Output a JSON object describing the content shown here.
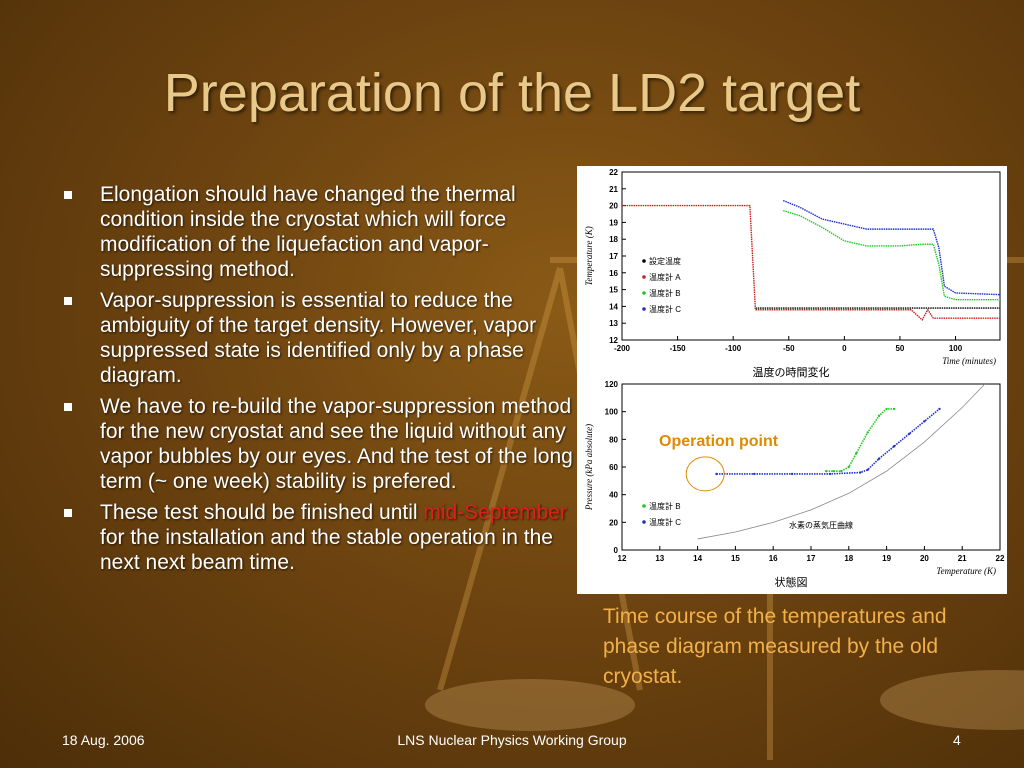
{
  "slide": {
    "title": "Preparation of the LD2 target",
    "bullets": [
      {
        "text": "Elongation should have changed the thermal condition inside the cryostat which will force modification of the liquefaction and vapor-suppressing method."
      },
      {
        "text": "Vapor-suppression is essential to reduce the ambiguity of the target density. However, vapor suppressed state is identified only by a phase diagram."
      },
      {
        "text": "We have to re-build the vapor-suppression method for the new cryostat and see the liquid without any vapor bubbles by our eyes. And the test of the long term (~ one week) stability is prefered."
      },
      {
        "text_before": "These test should be finished until ",
        "highlight": "mid-September",
        "text_after": " for the installation and the stable operation in the next next beam time."
      }
    ],
    "caption": "Time course of the temperatures and phase diagram measured by the old cryostat.",
    "footer": {
      "date": "18 Aug. 2006",
      "center": "LNS Nuclear Physics Working Group",
      "page": "4"
    },
    "colors": {
      "title": "#e8c98a",
      "caption": "#f2b04a",
      "highlight": "#e0201a"
    }
  },
  "chart_data": [
    {
      "type": "line",
      "title": "温度の時間変化",
      "xlabel": "Time (minutes)",
      "ylabel": "Temperature (K)",
      "xlim": [
        -200,
        140
      ],
      "ylim": [
        12,
        22
      ],
      "x_ticks": [
        "-200",
        "-150",
        "-100",
        "-50",
        "0",
        "50",
        "100"
      ],
      "y_ticks": [
        "12",
        "13",
        "14",
        "15",
        "16",
        "17",
        "18",
        "19",
        "20",
        "21",
        "22"
      ],
      "legend": {
        "position": "left-bottom",
        "entries": [
          "設定温度",
          "温度計 A",
          "温度計 B",
          "温度計 C"
        ]
      },
      "series": [
        {
          "name": "設定温度",
          "color": "#000000",
          "x": [
            -80,
            0,
            65,
            100,
            140
          ],
          "y": [
            13.9,
            13.9,
            13.9,
            13.9,
            13.9
          ]
        },
        {
          "name": "温度計 A",
          "color": "#cc2020",
          "x": [
            -200,
            -150,
            -100,
            -85,
            -80,
            -10,
            0,
            60,
            70,
            75,
            80,
            100,
            140
          ],
          "y": [
            20.0,
            20.0,
            20.0,
            20.0,
            13.8,
            13.8,
            13.8,
            13.8,
            13.2,
            13.8,
            13.3,
            13.3,
            13.3
          ]
        },
        {
          "name": "温度計 B",
          "color": "#20cc20",
          "x": [
            -55,
            -40,
            -20,
            0,
            20,
            50,
            70,
            80,
            85,
            90,
            100,
            140
          ],
          "y": [
            19.7,
            19.4,
            18.7,
            17.9,
            17.6,
            17.6,
            17.7,
            17.7,
            16.5,
            14.6,
            14.4,
            14.4
          ]
        },
        {
          "name": "温度計 C",
          "color": "#2030cc",
          "x": [
            -55,
            -40,
            -20,
            0,
            20,
            50,
            70,
            80,
            85,
            90,
            100,
            140
          ],
          "y": [
            20.3,
            19.9,
            19.2,
            18.9,
            18.6,
            18.6,
            18.6,
            18.6,
            17.5,
            15.2,
            14.8,
            14.7
          ]
        }
      ]
    },
    {
      "type": "scatter",
      "title": "状態図",
      "xlabel": "Temperature (K)",
      "ylabel": "Pressure (kPa absolute)",
      "xlim": [
        12,
        22
      ],
      "ylim": [
        0,
        120
      ],
      "x_ticks": [
        "12",
        "13",
        "14",
        "15",
        "16",
        "17",
        "18",
        "19",
        "20",
        "21",
        "22"
      ],
      "y_ticks": [
        "0",
        "20",
        "40",
        "60",
        "80",
        "100",
        "120"
      ],
      "legend": {
        "position": "left-bottom",
        "entries": [
          "温度計 B",
          "温度計 C"
        ]
      },
      "annotations": [
        {
          "text": "Operation point",
          "color": "#e08a00"
        },
        {
          "text": "水素の蒸気圧曲線",
          "color": "#000000"
        }
      ],
      "series": [
        {
          "name": "温度計 B",
          "color": "#20cc20",
          "x": [
            17.4,
            17.6,
            17.8,
            18.0,
            18.2,
            18.5,
            18.8,
            19.0,
            19.2
          ],
          "y": [
            57,
            57,
            57,
            60,
            70,
            85,
            97,
            102,
            102
          ]
        },
        {
          "name": "温度計 C",
          "color": "#2030cc",
          "x": [
            14.5,
            15.5,
            16.5,
            17.5,
            18.3,
            18.5,
            18.8,
            19.2,
            19.6,
            20.0,
            20.4
          ],
          "y": [
            55,
            55,
            55,
            55,
            56,
            58,
            66,
            75,
            84,
            93,
            102
          ]
        },
        {
          "name": "水素の蒸気圧曲線",
          "color": "#888888",
          "x": [
            14.0,
            15.0,
            16.0,
            17.0,
            18.0,
            19.0,
            20.0,
            21.0,
            21.6
          ],
          "y": [
            8,
            13,
            20,
            29,
            41,
            57,
            78,
            103,
            120
          ]
        }
      ]
    }
  ]
}
